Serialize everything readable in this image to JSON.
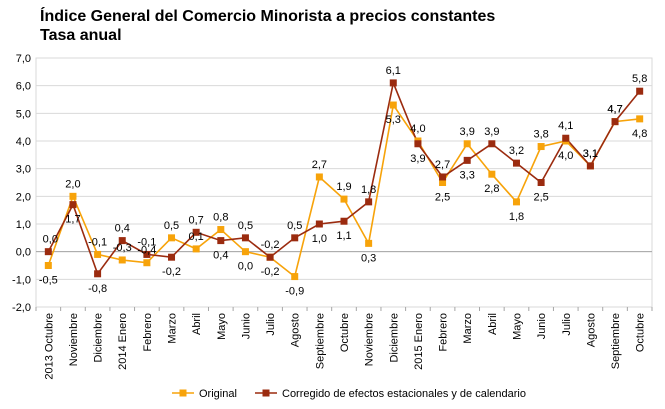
{
  "chart_data": {
    "type": "line",
    "title": "Índice General del Comercio Minorista a precios constantes",
    "subtitle": "Tasa anual",
    "xlabel": "",
    "ylabel": "",
    "ylim": [
      -2.0,
      7.0
    ],
    "yticks": [
      "-2,0",
      "-1,0",
      "0,0",
      "1,0",
      "2,0",
      "3,0",
      "4,0",
      "5,0",
      "6,0",
      "7,0"
    ],
    "ytick_values": [
      -2,
      -1,
      0,
      1,
      2,
      3,
      4,
      5,
      6,
      7
    ],
    "grid": true,
    "legend_position": "bottom",
    "categories": [
      "2013 Octubre",
      "Noviembre",
      "Diciembre",
      "2014 Enero",
      "Febrero",
      "Marzo",
      "Abril",
      "Mayo",
      "Junio",
      "Julio",
      "Agosto",
      "Septiembre",
      "Octubre",
      "Noviembre",
      "Diciembre",
      "2015 Enero",
      "Febrero",
      "Marzo",
      "Abril",
      "Mayo",
      "Junio",
      "Julio",
      "Agosto",
      "Septiembre",
      "Octubre"
    ],
    "series": [
      {
        "name": "Original",
        "color": "#f7a30a",
        "values": [
          -0.5,
          2.0,
          -0.1,
          -0.3,
          -0.4,
          0.5,
          0.1,
          0.8,
          0.0,
          -0.2,
          -0.9,
          2.7,
          1.9,
          0.3,
          5.3,
          4.0,
          2.5,
          3.9,
          2.8,
          1.8,
          3.8,
          4.0,
          3.1,
          4.7,
          4.8
        ],
        "labels": [
          "-0,5",
          "2,0",
          "-0,1",
          "-0,3",
          "-0,4",
          "0,5",
          "0,1",
          "0,8",
          "0,0",
          "-0,2",
          "-0,9",
          "2,7",
          "1,9",
          "0,3",
          "5,3",
          "4,0",
          "2,5",
          "3,9",
          "2,8",
          "1,8",
          "3,8",
          "4,0",
          "3,1",
          "4,7",
          "4,8"
        ]
      },
      {
        "name": "Corregido de efectos estacionales y de calendario",
        "color": "#9b2b0f",
        "values": [
          0.0,
          1.7,
          -0.8,
          0.4,
          -0.1,
          -0.2,
          0.7,
          0.4,
          0.5,
          -0.2,
          0.5,
          1.0,
          1.1,
          1.8,
          6.1,
          3.9,
          2.7,
          3.3,
          3.9,
          3.2,
          2.5,
          4.1,
          3.1,
          4.7,
          5.8
        ],
        "labels": [
          "0,0",
          "1,7",
          "-0,8",
          "0,4",
          "-0,1",
          "-0,2",
          "0,7",
          "0,4",
          "0,5",
          "-0,2",
          "0,5",
          "1,0",
          "1,1",
          "1,8",
          "6,1",
          "3,9",
          "2,7",
          "3,3",
          "3,9",
          "3,2",
          "2,5",
          "4,1",
          "3,1",
          "4,7",
          "5,8"
        ]
      }
    ]
  }
}
